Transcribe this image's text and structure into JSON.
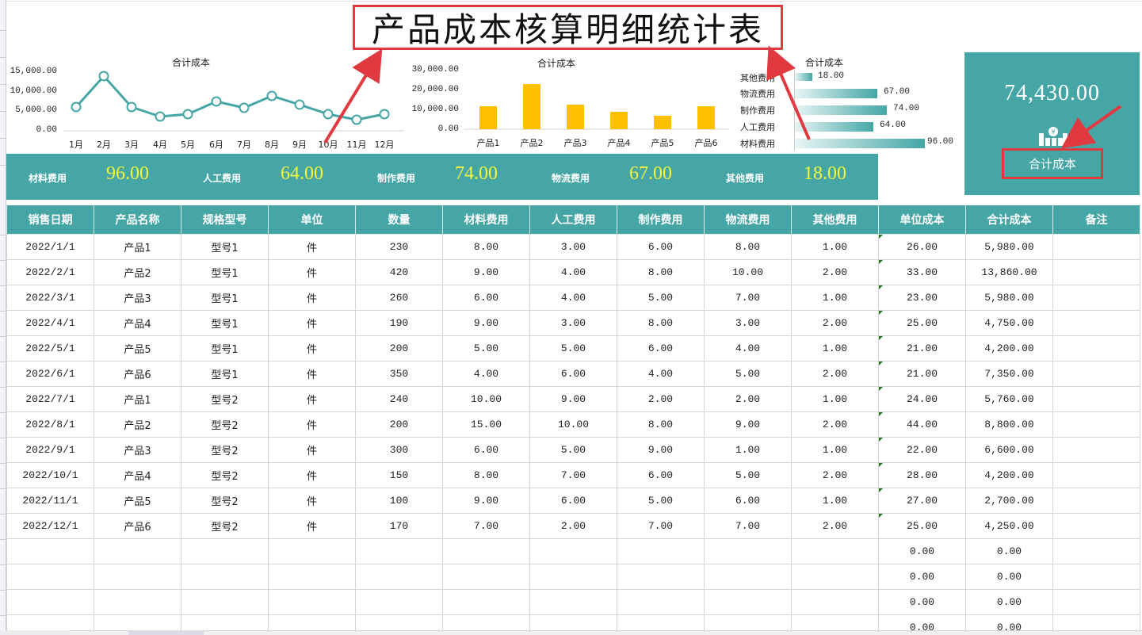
{
  "title": "产品成本核算明细统计表",
  "colors": {
    "teal": "#46a6a6",
    "yellow_value": "#f7f53a",
    "bar_yellow": "#ffc000",
    "annotation_red": "#e0393f",
    "cell_flag_green": "#1f7a1f"
  },
  "line_chart": {
    "title": "合计成本",
    "y_ticks": [
      "15,000.00",
      "10,000.00",
      "5,000.00",
      "0.00"
    ],
    "categories": [
      "1月",
      "2月",
      "3月",
      "4月",
      "5月",
      "6月",
      "7月",
      "8月",
      "9月",
      "10月",
      "11月",
      "12月"
    ]
  },
  "bar_chart": {
    "title": "合计成本",
    "y_ticks": [
      "30,000.00",
      "20,000.00",
      "10,000.00",
      "0.00"
    ],
    "categories": [
      "产品1",
      "产品2",
      "产品3",
      "产品4",
      "产品5",
      "产品6"
    ]
  },
  "hbar_chart": {
    "title": "合计成本",
    "rows": [
      {
        "label": "其他费用",
        "value": "18.00"
      },
      {
        "label": "物流费用",
        "value": "67.00"
      },
      {
        "label": "制作费用",
        "value": "74.00"
      },
      {
        "label": "人工费用",
        "value": "64.00"
      },
      {
        "label": "材料费用",
        "value": "96.00"
      }
    ]
  },
  "chart_data": [
    {
      "type": "line",
      "title": "合计成本",
      "xlabel": "",
      "ylabel": "",
      "categories": [
        "1月",
        "2月",
        "3月",
        "4月",
        "5月",
        "6月",
        "7月",
        "8月",
        "9月",
        "10月",
        "11月",
        "12月"
      ],
      "values": [
        5980,
        13860,
        5980,
        4750,
        4200,
        7350,
        5760,
        8800,
        6600,
        4200,
        2700,
        4250
      ],
      "ylim": [
        0,
        15000
      ],
      "y_ticks": [
        0,
        5000,
        10000,
        15000
      ],
      "grid": false,
      "legend": "none"
    },
    {
      "type": "bar",
      "title": "合计成本",
      "xlabel": "",
      "ylabel": "",
      "categories": [
        "产品1",
        "产品2",
        "产品3",
        "产品4",
        "产品5",
        "产品6"
      ],
      "values": [
        11740,
        22660,
        12580,
        8950,
        6900,
        11600
      ],
      "ylim": [
        0,
        30000
      ],
      "y_ticks": [
        0,
        10000,
        20000,
        30000
      ],
      "grid": false,
      "legend": "none"
    },
    {
      "type": "bar",
      "orientation": "horizontal",
      "title": "合计成本",
      "categories": [
        "其他费用",
        "物流费用",
        "制作费用",
        "人工费用",
        "材料费用"
      ],
      "values": [
        18,
        67,
        74,
        64,
        96
      ],
      "data_labels": [
        "18.00",
        "67.00",
        "74.00",
        "64.00",
        "96.00"
      ],
      "grid": false,
      "legend": "none"
    }
  ],
  "summary_band": [
    {
      "label": "材料费用",
      "value": "96.00"
    },
    {
      "label": "人工费用",
      "value": "64.00"
    },
    {
      "label": "制作费用",
      "value": "74.00"
    },
    {
      "label": "物流费用",
      "value": "67.00"
    },
    {
      "label": "其他费用",
      "value": "18.00"
    }
  ],
  "kpi": {
    "value": "74,430.00",
    "icon": "money-bar-chart-icon",
    "label": "合计成本"
  },
  "table": {
    "headers": [
      "销售日期",
      "产品名称",
      "规格型号",
      "单位",
      "数量",
      "材料费用",
      "人工费用",
      "制作费用",
      "物流费用",
      "其他费用",
      "单位成本",
      "合计成本",
      "备注"
    ],
    "rows": [
      [
        "2022/1/1",
        "产品1",
        "型号1",
        "件",
        "230",
        "8.00",
        "3.00",
        "6.00",
        "8.00",
        "1.00",
        "26.00",
        "5,980.00",
        ""
      ],
      [
        "2022/2/1",
        "产品2",
        "型号1",
        "件",
        "420",
        "9.00",
        "4.00",
        "8.00",
        "10.00",
        "2.00",
        "33.00",
        "13,860.00",
        ""
      ],
      [
        "2022/3/1",
        "产品3",
        "型号1",
        "件",
        "260",
        "6.00",
        "4.00",
        "5.00",
        "7.00",
        "1.00",
        "23.00",
        "5,980.00",
        ""
      ],
      [
        "2022/4/1",
        "产品4",
        "型号1",
        "件",
        "190",
        "9.00",
        "3.00",
        "8.00",
        "3.00",
        "2.00",
        "25.00",
        "4,750.00",
        ""
      ],
      [
        "2022/5/1",
        "产品5",
        "型号1",
        "件",
        "200",
        "5.00",
        "5.00",
        "6.00",
        "4.00",
        "1.00",
        "21.00",
        "4,200.00",
        ""
      ],
      [
        "2022/6/1",
        "产品6",
        "型号1",
        "件",
        "350",
        "4.00",
        "6.00",
        "4.00",
        "5.00",
        "2.00",
        "21.00",
        "7,350.00",
        ""
      ],
      [
        "2022/7/1",
        "产品1",
        "型号2",
        "件",
        "240",
        "10.00",
        "9.00",
        "2.00",
        "2.00",
        "1.00",
        "24.00",
        "5,760.00",
        ""
      ],
      [
        "2022/8/1",
        "产品2",
        "型号2",
        "件",
        "200",
        "15.00",
        "10.00",
        "8.00",
        "9.00",
        "2.00",
        "44.00",
        "8,800.00",
        ""
      ],
      [
        "2022/9/1",
        "产品3",
        "型号2",
        "件",
        "300",
        "6.00",
        "5.00",
        "9.00",
        "1.00",
        "1.00",
        "22.00",
        "6,600.00",
        ""
      ],
      [
        "2022/10/1",
        "产品4",
        "型号2",
        "件",
        "150",
        "8.00",
        "7.00",
        "6.00",
        "5.00",
        "2.00",
        "28.00",
        "4,200.00",
        ""
      ],
      [
        "2022/11/1",
        "产品5",
        "型号2",
        "件",
        "100",
        "9.00",
        "6.00",
        "5.00",
        "6.00",
        "1.00",
        "27.00",
        "2,700.00",
        ""
      ],
      [
        "2022/12/1",
        "产品6",
        "型号2",
        "件",
        "170",
        "7.00",
        "2.00",
        "7.00",
        "7.00",
        "2.00",
        "25.00",
        "4,250.00",
        ""
      ],
      [
        "",
        "",
        "",
        "",
        "",
        "",
        "",
        "",
        "",
        "",
        "0.00",
        "0.00",
        ""
      ],
      [
        "",
        "",
        "",
        "",
        "",
        "",
        "",
        "",
        "",
        "",
        "0.00",
        "0.00",
        ""
      ],
      [
        "",
        "",
        "",
        "",
        "",
        "",
        "",
        "",
        "",
        "",
        "0.00",
        "0.00",
        ""
      ],
      [
        "",
        "",
        "",
        "",
        "",
        "",
        "",
        "",
        "",
        "",
        "0.00",
        "0.00",
        ""
      ]
    ]
  }
}
